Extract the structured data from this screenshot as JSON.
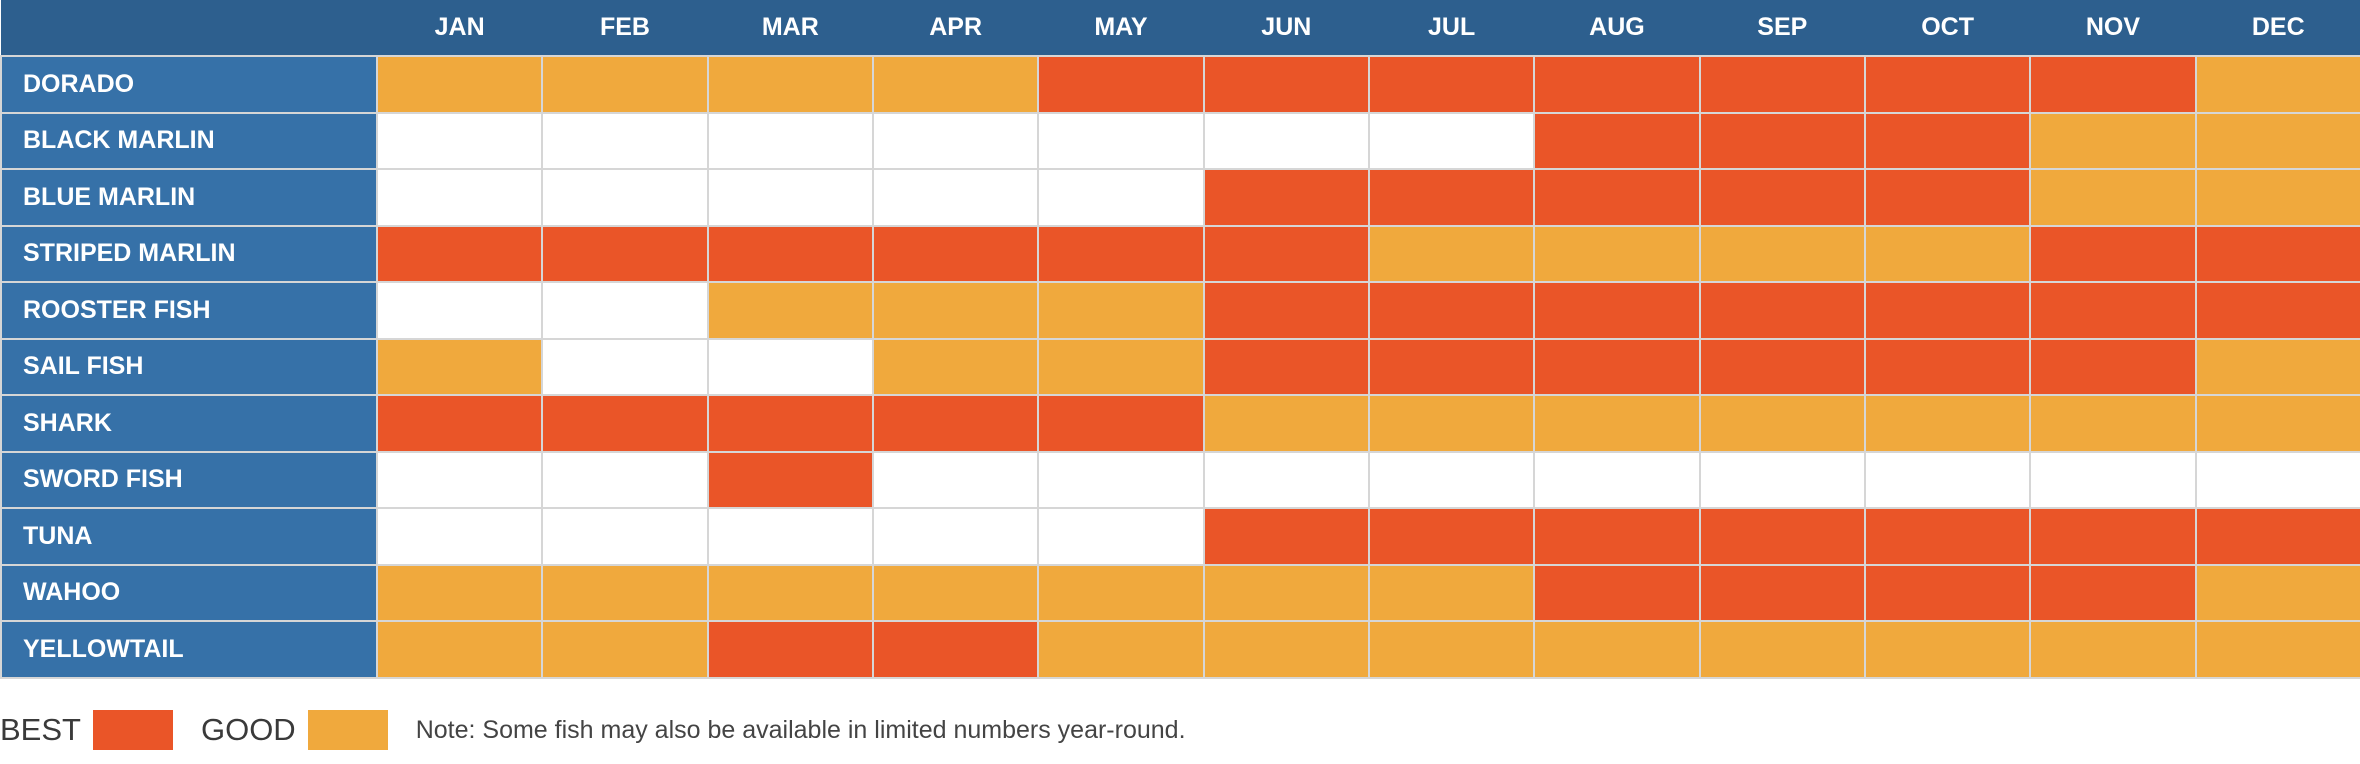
{
  "colors": {
    "best": "#ea5528",
    "good": "#f0a93d",
    "none": "#ffffff"
  },
  "legend": {
    "best_label": "BEST",
    "good_label": "GOOD",
    "note": "Note: Some fish may also be available in limited numbers year-round."
  },
  "chart_data": {
    "type": "heatmap",
    "title": "",
    "x": [
      "JAN",
      "FEB",
      "MAR",
      "APR",
      "MAY",
      "JUN",
      "JUL",
      "AUG",
      "SEP",
      "OCT",
      "NOV",
      "DEC"
    ],
    "y": [
      "DORADO",
      "BLACK MARLIN",
      "BLUE MARLIN",
      "STRIPED MARLIN",
      "ROOSTER FISH",
      "SAIL FISH",
      "SHARK",
      "SWORD FISH",
      "TUNA",
      "WAHOO",
      "YELLOWTAIL"
    ],
    "levels": [
      "none",
      "good",
      "best"
    ],
    "values": [
      [
        "good",
        "good",
        "good",
        "good",
        "best",
        "best",
        "best",
        "best",
        "best",
        "best",
        "best",
        "good"
      ],
      [
        "none",
        "none",
        "none",
        "none",
        "none",
        "none",
        "none",
        "best",
        "best",
        "best",
        "good",
        "good"
      ],
      [
        "none",
        "none",
        "none",
        "none",
        "none",
        "best",
        "best",
        "best",
        "best",
        "best",
        "good",
        "good"
      ],
      [
        "best",
        "best",
        "best",
        "best",
        "best",
        "best",
        "good",
        "good",
        "good",
        "good",
        "best",
        "best"
      ],
      [
        "none",
        "none",
        "good",
        "good",
        "good",
        "best",
        "best",
        "best",
        "best",
        "best",
        "best",
        "best"
      ],
      [
        "good",
        "none",
        "none",
        "good",
        "good",
        "best",
        "best",
        "best",
        "best",
        "best",
        "best",
        "good"
      ],
      [
        "best",
        "best",
        "best",
        "best",
        "best",
        "good",
        "good",
        "good",
        "good",
        "good",
        "good",
        "good"
      ],
      [
        "none",
        "none",
        "best",
        "none",
        "none",
        "none",
        "none",
        "none",
        "none",
        "none",
        "none",
        "none"
      ],
      [
        "none",
        "none",
        "none",
        "none",
        "none",
        "best",
        "best",
        "best",
        "best",
        "best",
        "best",
        "best"
      ],
      [
        "good",
        "good",
        "good",
        "good",
        "good",
        "good",
        "good",
        "best",
        "best",
        "best",
        "best",
        "good"
      ],
      [
        "good",
        "good",
        "best",
        "best",
        "good",
        "good",
        "good",
        "good",
        "good",
        "good",
        "good",
        "good"
      ]
    ]
  }
}
